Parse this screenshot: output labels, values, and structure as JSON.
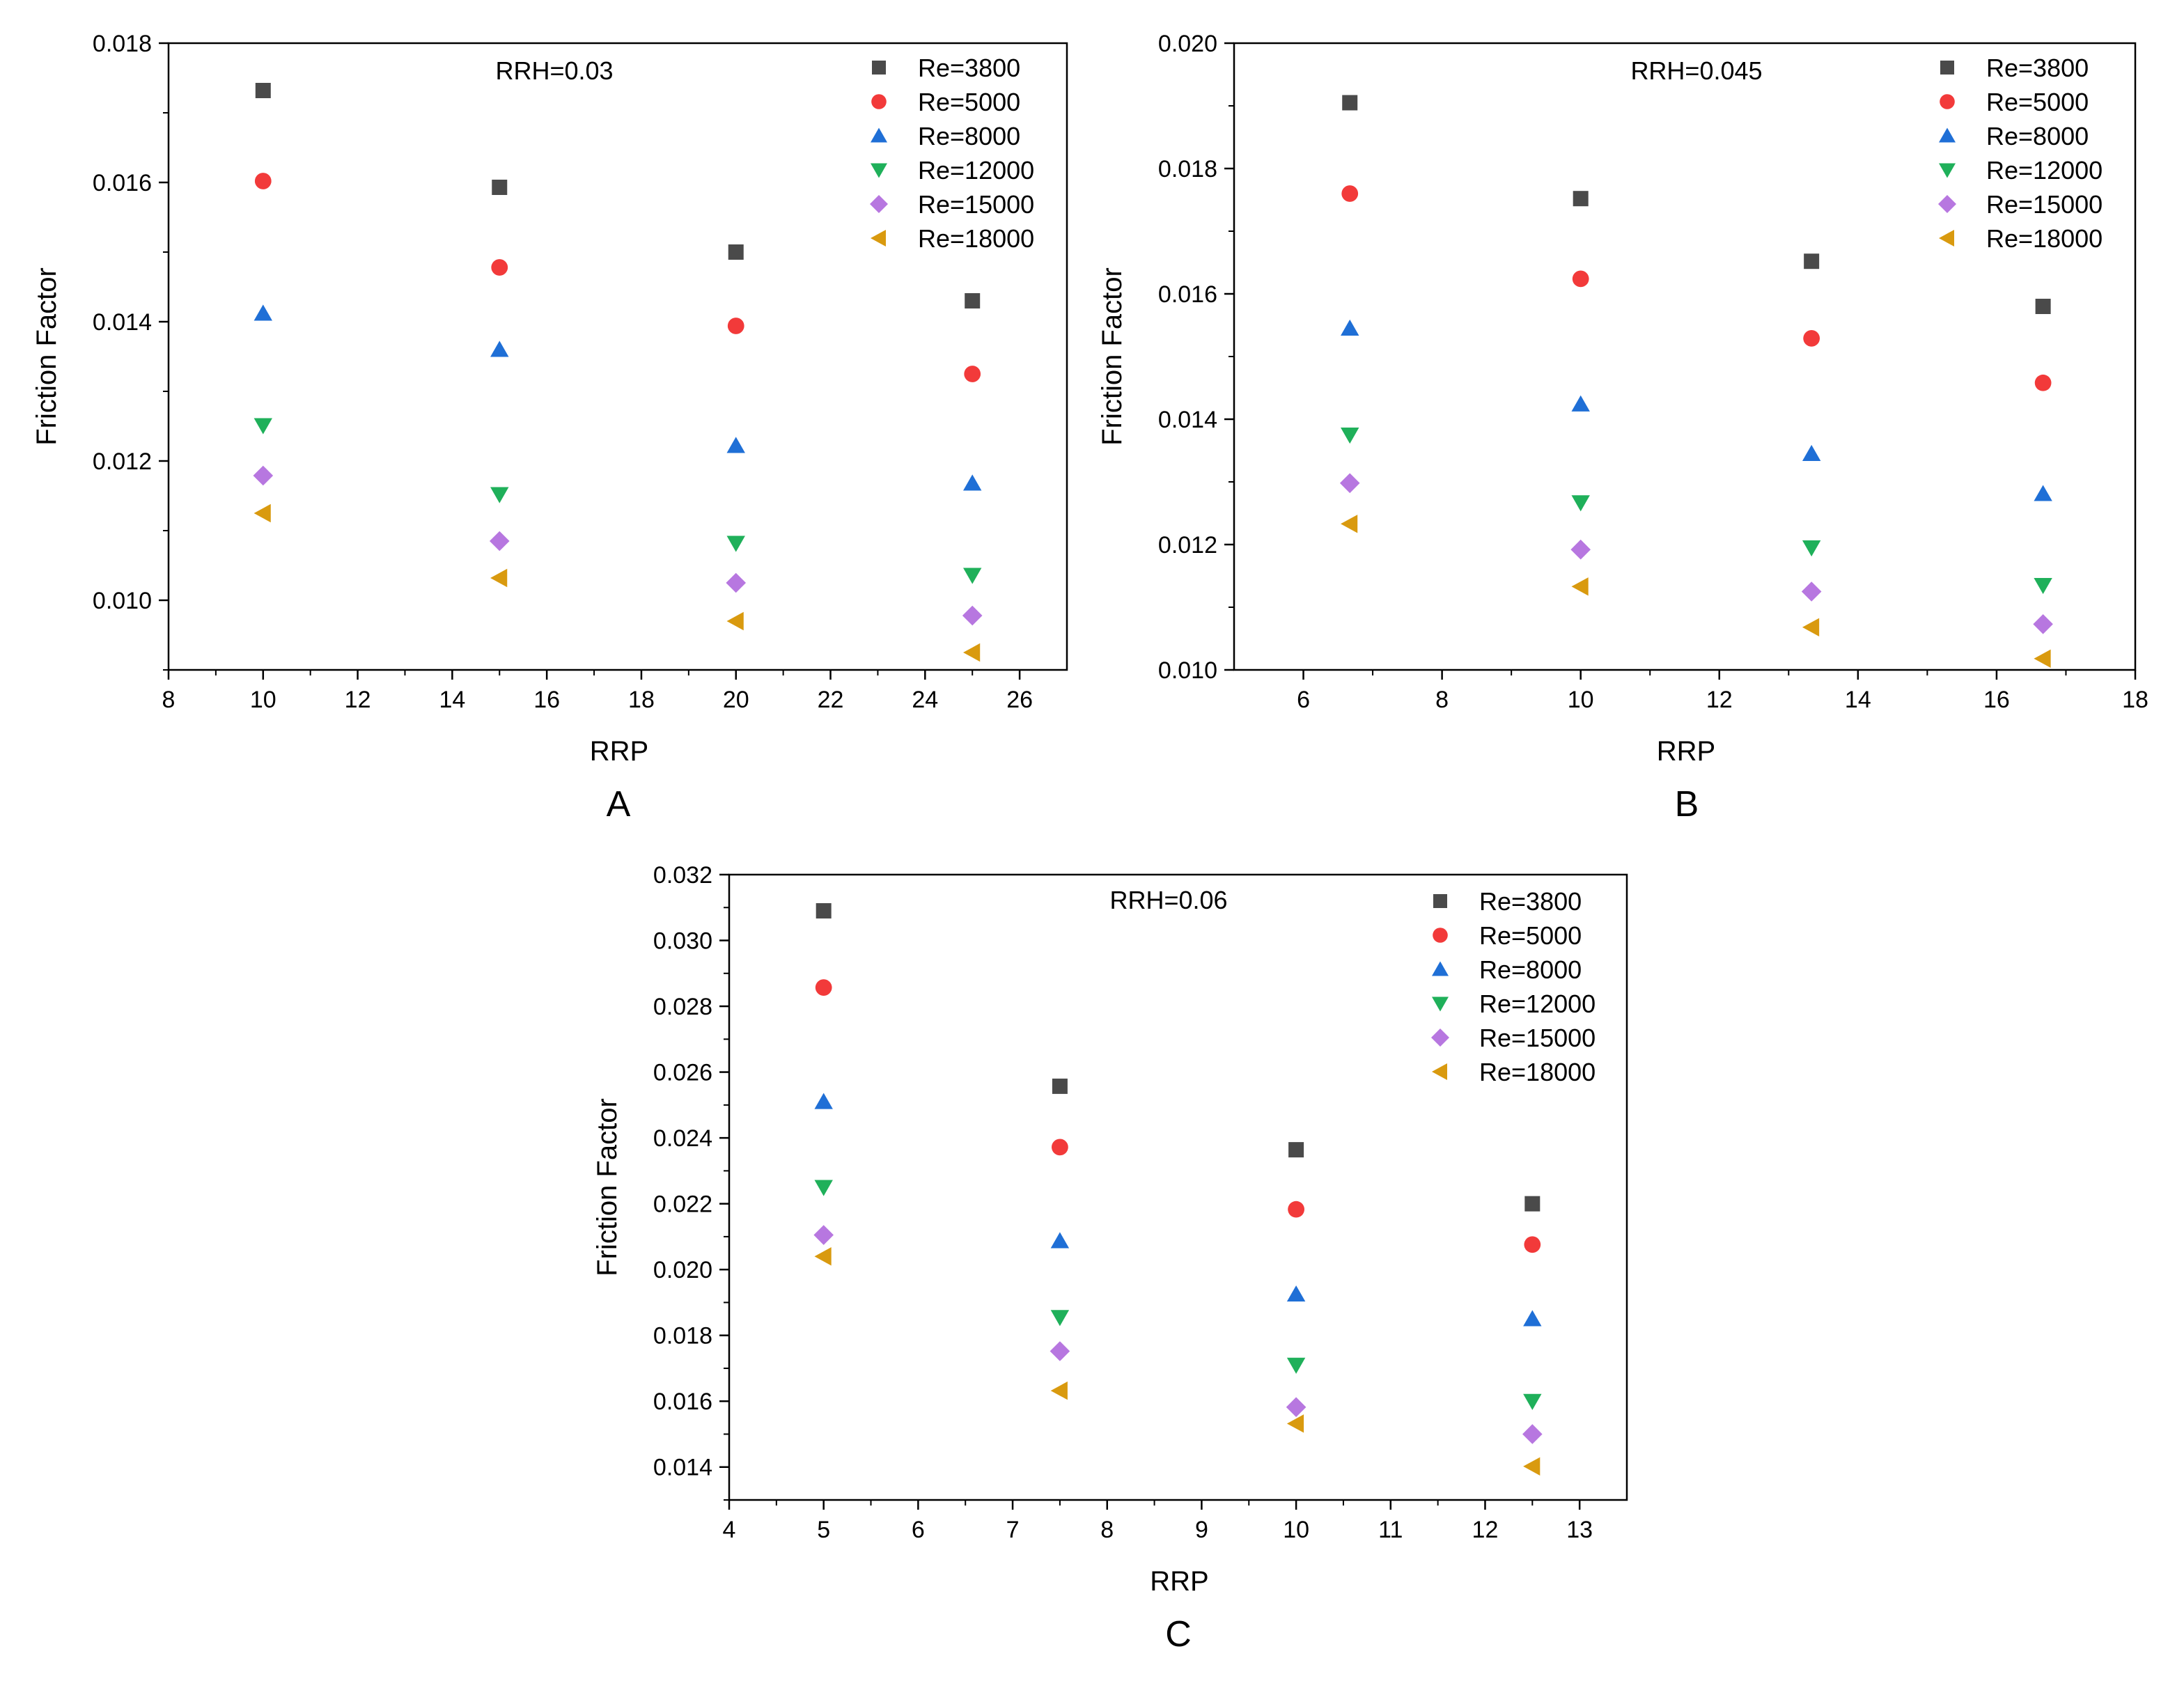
{
  "chart_data": [
    {
      "type": "scatter",
      "panel_label": "A",
      "annotation": "RRH=0.03",
      "xlabel": "RRP",
      "ylabel": "Friction Factor",
      "xlim": [
        8,
        27
      ],
      "ylim": [
        0.009,
        0.018
      ],
      "x_ticks": [
        8,
        10,
        12,
        14,
        16,
        18,
        20,
        22,
        24,
        26
      ],
      "y_ticks": [
        0.01,
        0.012,
        0.014,
        0.016,
        0.018
      ],
      "x_tick_labels": [
        "8",
        "10",
        "12",
        "14",
        "16",
        "18",
        "20",
        "22",
        "24",
        "26"
      ],
      "y_tick_labels": [
        "0.010",
        "0.012",
        "0.014",
        "0.016",
        "0.018"
      ],
      "x": [
        10,
        15,
        20,
        25
      ],
      "series": [
        {
          "name": "Re=3800",
          "marker": "square",
          "color": "#4a4a4a",
          "values": [
            0.01732,
            0.01593,
            0.015,
            0.0143
          ]
        },
        {
          "name": "Re=5000",
          "marker": "circle",
          "color": "#f23a3a",
          "values": [
            0.01602,
            0.01478,
            0.01394,
            0.01325
          ]
        },
        {
          "name": "Re=8000",
          "marker": "triangle-up",
          "color": "#1f6fd6",
          "values": [
            0.01412,
            0.0136,
            0.01222,
            0.01168
          ]
        },
        {
          "name": "Re=12000",
          "marker": "triangle-down",
          "color": "#1fb05a",
          "values": [
            0.01251,
            0.01152,
            0.01082,
            0.01036
          ]
        },
        {
          "name": "Re=15000",
          "marker": "diamond",
          "color": "#b777e0",
          "values": [
            0.01179,
            0.01085,
            0.01025,
            0.00978
          ]
        },
        {
          "name": "Re=18000",
          "marker": "triangle-left",
          "color": "#d99a0f",
          "values": [
            0.01125,
            0.01032,
            0.0097,
            0.00925
          ]
        }
      ]
    },
    {
      "type": "scatter",
      "panel_label": "B",
      "annotation": "RRH=0.045",
      "xlabel": "RRP",
      "ylabel": "Friction Factor",
      "xlim": [
        5,
        18
      ],
      "ylim": [
        0.01,
        0.02
      ],
      "x_ticks": [
        6,
        8,
        10,
        12,
        14,
        16,
        18
      ],
      "y_ticks": [
        0.01,
        0.012,
        0.014,
        0.016,
        0.018,
        0.02
      ],
      "x_tick_labels": [
        "6",
        "8",
        "10",
        "12",
        "14",
        "16",
        "18"
      ],
      "y_tick_labels": [
        "0.010",
        "0.012",
        "0.014",
        "0.016",
        "0.018",
        "0.020"
      ],
      "x": [
        6.67,
        10,
        13.33,
        16.67
      ],
      "series": [
        {
          "name": "Re=3800",
          "marker": "square",
          "color": "#4a4a4a",
          "values": [
            0.01905,
            0.01752,
            0.01652,
            0.0158
          ]
        },
        {
          "name": "Re=5000",
          "marker": "circle",
          "color": "#f23a3a",
          "values": [
            0.0176,
            0.01624,
            0.01529,
            0.01458
          ]
        },
        {
          "name": "Re=8000",
          "marker": "triangle-up",
          "color": "#1f6fd6",
          "values": [
            0.01545,
            0.01424,
            0.01345,
            0.01281
          ]
        },
        {
          "name": "Re=12000",
          "marker": "triangle-down",
          "color": "#1fb05a",
          "values": [
            0.01375,
            0.01267,
            0.01195,
            0.01135
          ]
        },
        {
          "name": "Re=15000",
          "marker": "diamond",
          "color": "#b777e0",
          "values": [
            0.01298,
            0.01192,
            0.01125,
            0.01073
          ]
        },
        {
          "name": "Re=18000",
          "marker": "triangle-left",
          "color": "#d99a0f",
          "values": [
            0.01233,
            0.01133,
            0.01068,
            0.01018
          ]
        }
      ]
    },
    {
      "type": "scatter",
      "panel_label": "C",
      "annotation": "RRH=0.06",
      "xlabel": "RRP",
      "ylabel": "Friction Factor",
      "xlim": [
        4,
        13.5
      ],
      "ylim": [
        0.013,
        0.032
      ],
      "x_ticks": [
        4,
        5,
        6,
        7,
        8,
        9,
        10,
        11,
        12,
        13
      ],
      "y_ticks": [
        0.014,
        0.016,
        0.018,
        0.02,
        0.022,
        0.024,
        0.026,
        0.028,
        0.03,
        0.032
      ],
      "x_tick_labels": [
        "4",
        "5",
        "6",
        "7",
        "8",
        "9",
        "10",
        "11",
        "12",
        "13"
      ],
      "y_tick_labels": [
        "0.014",
        "0.016",
        "0.018",
        "0.020",
        "0.022",
        "0.024",
        "0.026",
        "0.028",
        "0.030",
        "0.032"
      ],
      "x": [
        5,
        7.5,
        10,
        12.5
      ],
      "series": [
        {
          "name": "Re=3800",
          "marker": "square",
          "color": "#4a4a4a",
          "values": [
            0.0309,
            0.02557,
            0.02364,
            0.022
          ]
        },
        {
          "name": "Re=5000",
          "marker": "circle",
          "color": "#f23a3a",
          "values": [
            0.02857,
            0.02372,
            0.02183,
            0.02076
          ]
        },
        {
          "name": "Re=8000",
          "marker": "triangle-up",
          "color": "#1f6fd6",
          "values": [
            0.0251,
            0.02087,
            0.01925,
            0.0185
          ]
        },
        {
          "name": "Re=12000",
          "marker": "triangle-down",
          "color": "#1fb05a",
          "values": [
            0.0225,
            0.01855,
            0.0171,
            0.016
          ]
        },
        {
          "name": "Re=15000",
          "marker": "diamond",
          "color": "#b777e0",
          "values": [
            0.02105,
            0.01752,
            0.01582,
            0.015
          ]
        },
        {
          "name": "Re=18000",
          "marker": "triangle-left",
          "color": "#d99a0f",
          "values": [
            0.0204,
            0.01632,
            0.01532,
            0.01402
          ]
        }
      ]
    }
  ]
}
